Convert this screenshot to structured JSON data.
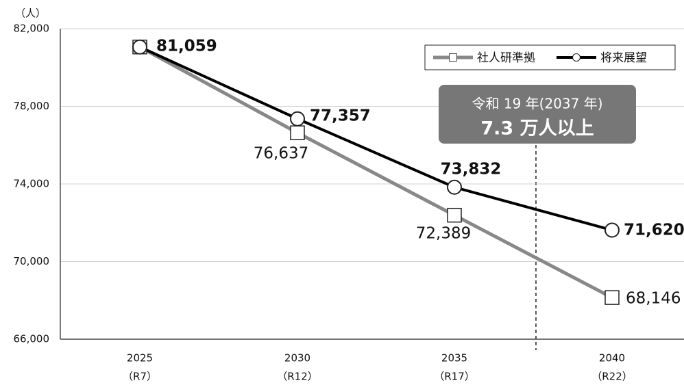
{
  "chart_data": {
    "type": "line",
    "y_unit_label": "（人）",
    "categories": [
      "2025",
      "2030",
      "2035",
      "2040"
    ],
    "category_sublabels": [
      "（R7）",
      "（R12）",
      "（R17）",
      "（R22）"
    ],
    "series": [
      {
        "name": "社人研準拠",
        "color": "#888888",
        "marker": "square",
        "values": [
          81059,
          76637,
          72389,
          68146
        ],
        "value_labels": [
          null,
          "76,637",
          "72,389",
          "68,146"
        ]
      },
      {
        "name": "将来展望",
        "color": "#000000",
        "marker": "circle",
        "values": [
          81059,
          77357,
          73832,
          71620
        ],
        "value_labels": [
          "81,059",
          "77,357",
          "73,832",
          "71,620"
        ]
      }
    ],
    "ylim": [
      66000,
      82000
    ],
    "yticks": [
      {
        "value": 66000,
        "label": "66,000"
      },
      {
        "value": 70000,
        "label": "70,000"
      },
      {
        "value": 74000,
        "label": "74,000"
      },
      {
        "value": 78000,
        "label": "78,000"
      },
      {
        "value": 82000,
        "label": "82,000"
      }
    ],
    "grid": true,
    "legend": "top-right",
    "annotation": {
      "line1": "令和 19 年(2037 年)",
      "line2": "7.3 万人以上"
    }
  }
}
